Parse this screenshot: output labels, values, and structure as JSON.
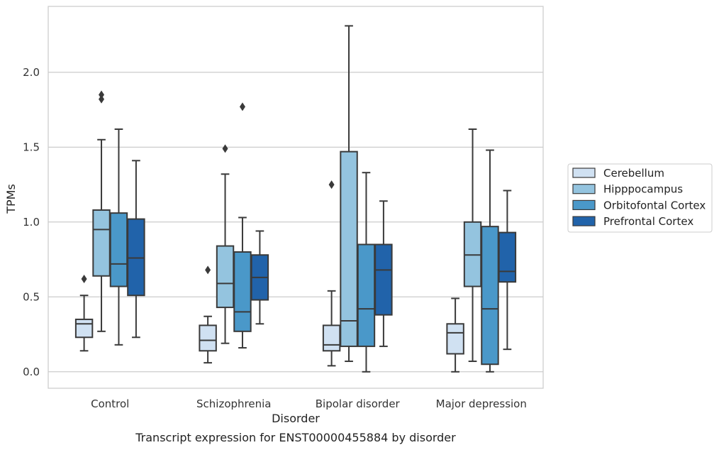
{
  "chart_data": {
    "type": "box",
    "caption": "Transcript expression for ENST00000455884 by disorder",
    "xlabel": "Disorder",
    "ylabel": "TPMs",
    "ylim": [
      -0.11,
      2.44
    ],
    "yticks": [
      "0.0",
      "0.5",
      "1.0",
      "1.5",
      "2.0"
    ],
    "categories": [
      "Control",
      "Schizophrenia",
      "Bipolar disorder",
      "Major depression"
    ],
    "grid": "horizontal",
    "legend_position": "right",
    "series": [
      {
        "name": "Cerebellum",
        "color": "#d0e1f2",
        "boxes": [
          {
            "whislo": 0.14,
            "q1": 0.23,
            "med": 0.32,
            "q3": 0.35,
            "whishi": 0.51,
            "fliers": [
              0.62
            ]
          },
          {
            "whislo": 0.06,
            "q1": 0.14,
            "med": 0.21,
            "q3": 0.31,
            "whishi": 0.37,
            "fliers": [
              0.68
            ]
          },
          {
            "whislo": 0.04,
            "q1": 0.14,
            "med": 0.18,
            "q3": 0.31,
            "whishi": 0.54,
            "fliers": [
              1.25
            ]
          },
          {
            "whislo": 0.0,
            "q1": 0.12,
            "med": 0.26,
            "q3": 0.32,
            "whishi": 0.49,
            "fliers": []
          }
        ]
      },
      {
        "name": "Hipppocampus",
        "color": "#94c4df",
        "boxes": [
          {
            "whislo": 0.27,
            "q1": 0.64,
            "med": 0.95,
            "q3": 1.08,
            "whishi": 1.55,
            "fliers": [
              1.82,
              1.85
            ]
          },
          {
            "whislo": 0.19,
            "q1": 0.43,
            "med": 0.59,
            "q3": 0.84,
            "whishi": 1.32,
            "fliers": [
              1.49
            ]
          },
          {
            "whislo": 0.07,
            "q1": 0.17,
            "med": 0.34,
            "q3": 1.47,
            "whishi": 2.31,
            "fliers": []
          },
          {
            "whislo": 0.07,
            "q1": 0.57,
            "med": 0.78,
            "q3": 1.0,
            "whishi": 1.62,
            "fliers": []
          }
        ]
      },
      {
        "name": "Orbitofontal Cortex",
        "color": "#4a98c9",
        "boxes": [
          {
            "whislo": 0.18,
            "q1": 0.57,
            "med": 0.72,
            "q3": 1.06,
            "whishi": 1.62,
            "fliers": []
          },
          {
            "whislo": 0.16,
            "q1": 0.27,
            "med": 0.4,
            "q3": 0.8,
            "whishi": 1.03,
            "fliers": [
              1.77
            ]
          },
          {
            "whislo": 0.0,
            "q1": 0.17,
            "med": 0.42,
            "q3": 0.85,
            "whishi": 1.33,
            "fliers": []
          },
          {
            "whislo": 0.0,
            "q1": 0.05,
            "med": 0.42,
            "q3": 0.97,
            "whishi": 1.48,
            "fliers": []
          }
        ]
      },
      {
        "name": "Prefrontal Cortex",
        "color": "#2163aa",
        "boxes": [
          {
            "whislo": 0.23,
            "q1": 0.51,
            "med": 0.76,
            "q3": 1.02,
            "whishi": 1.41,
            "fliers": []
          },
          {
            "whislo": 0.32,
            "q1": 0.48,
            "med": 0.63,
            "q3": 0.78,
            "whishi": 0.94,
            "fliers": []
          },
          {
            "whislo": 0.17,
            "q1": 0.38,
            "med": 0.68,
            "q3": 0.85,
            "whishi": 1.14,
            "fliers": []
          },
          {
            "whislo": 0.15,
            "q1": 0.6,
            "med": 0.67,
            "q3": 0.93,
            "whishi": 1.21,
            "fliers": []
          }
        ]
      }
    ]
  }
}
